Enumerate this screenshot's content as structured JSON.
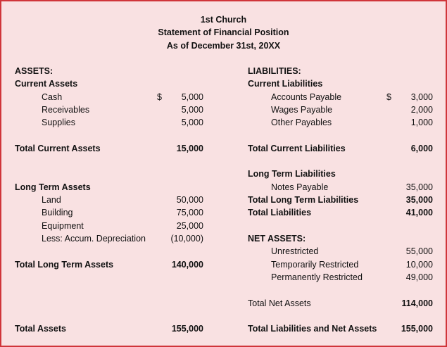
{
  "header": {
    "line1": "1st Church",
    "line2": "Statement of Financial Position",
    "line3": "As of December 31st, 20XX"
  },
  "assets": {
    "heading": "ASSETS:",
    "current": {
      "heading": "Current Assets",
      "items": [
        {
          "label": "Cash",
          "currency": "$",
          "amount": "5,000"
        },
        {
          "label": "Receivables",
          "amount": "5,000"
        },
        {
          "label": "Supplies",
          "amount": "5,000"
        }
      ],
      "total": {
        "label": "Total Current Assets",
        "amount": "15,000"
      }
    },
    "long_term": {
      "heading": "Long Term Assets",
      "items": [
        {
          "label": "Land",
          "amount": "50,000"
        },
        {
          "label": "Building",
          "amount": "75,000"
        },
        {
          "label": "Equipment",
          "amount": "25,000"
        },
        {
          "label": "Less: Accum. Depreciation",
          "amount": "(10,000)"
        }
      ],
      "total": {
        "label": "Total Long Term Assets",
        "amount": "140,000"
      }
    },
    "total": {
      "label": "Total Assets",
      "amount": "155,000"
    }
  },
  "liabilities": {
    "heading": "LIABILITIES:",
    "current": {
      "heading": "Current Liabilities",
      "items": [
        {
          "label": "Accounts Payable",
          "currency": "$",
          "amount": "3,000"
        },
        {
          "label": "Wages Payable",
          "amount": "2,000"
        },
        {
          "label": "Other Payables",
          "amount": "1,000"
        }
      ],
      "total": {
        "label": "Total Current Liabilities",
        "amount": "6,000"
      }
    },
    "long_term": {
      "heading": "Long Term Liabilities",
      "items": [
        {
          "label": "Notes Payable",
          "amount": "35,000"
        }
      ],
      "total": {
        "label": "Total Long Term Liabilities",
        "amount": "35,000"
      }
    },
    "total_liabilities": {
      "label": "Total Liabilities",
      "amount": "41,000"
    },
    "net_assets": {
      "heading": "NET ASSETS:",
      "items": [
        {
          "label": "Unrestricted",
          "amount": "55,000"
        },
        {
          "label": "Temporarily Restricted",
          "amount": "10,000"
        },
        {
          "label": "Permanently Restricted",
          "amount": "49,000"
        }
      ],
      "total": {
        "label": "Total Net Assets",
        "amount": "114,000"
      }
    },
    "total": {
      "label": "Total Liabilities and Net Assets",
      "amount": "155,000"
    }
  }
}
